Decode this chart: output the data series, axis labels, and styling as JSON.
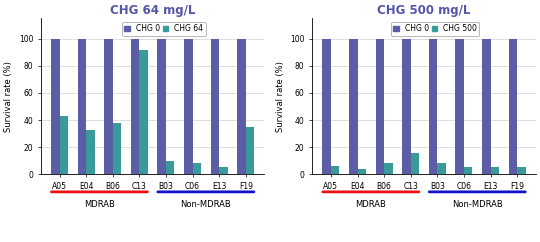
{
  "categories": [
    "A05",
    "E04",
    "B06",
    "C13",
    "B03",
    "C06",
    "E13",
    "F19"
  ],
  "chart1": {
    "title": "CHG 64 mg/L",
    "chg0_values": [
      100,
      100,
      100,
      100,
      100,
      100,
      100,
      100
    ],
    "chg_values": [
      43,
      33,
      38,
      92,
      10,
      8,
      5,
      35
    ],
    "legend_chg_label": "CHG 64",
    "color_chg0": "#5B5EA6",
    "color_chg": "#3A9999"
  },
  "chart2": {
    "title": "CHG 500 mg/L",
    "chg0_values": [
      100,
      100,
      100,
      100,
      100,
      100,
      100,
      100
    ],
    "chg_values": [
      6,
      4,
      8,
      16,
      8,
      5,
      5,
      5
    ],
    "legend_chg_label": "CHG 500",
    "color_chg0": "#5B5EA6",
    "color_chg": "#3A9999"
  },
  "ylabel": "Survival rate (%)",
  "ylim": [
    0,
    115
  ],
  "yticks": [
    0,
    20,
    40,
    60,
    80,
    100
  ],
  "legend_chg0_label": "CHG 0",
  "mdrab_label": "MDRAB",
  "non_mdrab_label": "Non-MDRAB",
  "color_mdrab_line": "#EE1111",
  "color_non_mdrab_line": "#1111CC",
  "bar_width": 0.32,
  "title_fontsize": 8.5,
  "tick_fontsize": 5.5,
  "label_fontsize": 6,
  "legend_fontsize": 5.5,
  "title_color": "#5555AA"
}
